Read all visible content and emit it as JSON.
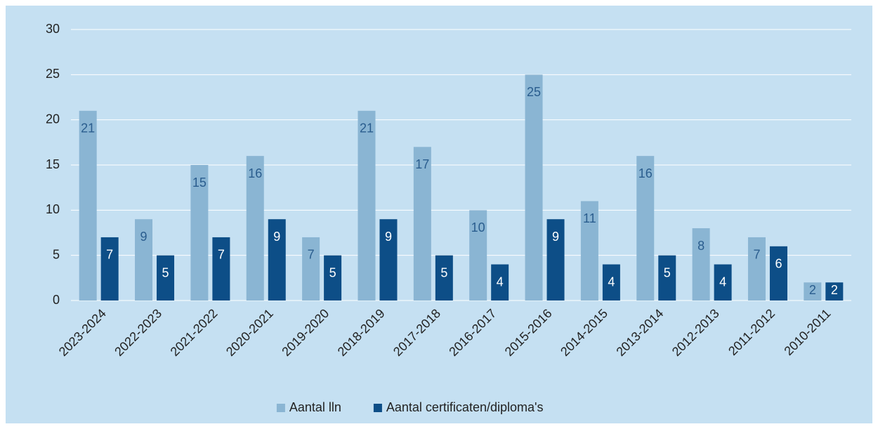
{
  "chart_data": {
    "type": "bar",
    "categories": [
      "2023-2024",
      "2022-2023",
      "2021-2022",
      "2020-2021",
      "2019-2020",
      "2018-2019",
      "2017-2018",
      "2016-2017",
      "2015-2016",
      "2014-2015",
      "2013-2014",
      "2012-2013",
      "2011-2012",
      "2010-2011"
    ],
    "series": [
      {
        "name": "Aantal lln",
        "color": "#8ab5d3",
        "values": [
          21,
          9,
          15,
          16,
          7,
          21,
          17,
          10,
          25,
          11,
          16,
          8,
          7,
          2
        ]
      },
      {
        "name": "Aantal certificaten/diploma's",
        "color": "#0d4e87",
        "values": [
          7,
          5,
          7,
          9,
          5,
          9,
          5,
          4,
          9,
          4,
          5,
          4,
          6,
          2
        ]
      }
    ],
    "ylim": [
      0,
      30
    ],
    "yticks": [
      0,
      5,
      10,
      15,
      20,
      25,
      30
    ],
    "grid": true,
    "legend": "bottom"
  }
}
